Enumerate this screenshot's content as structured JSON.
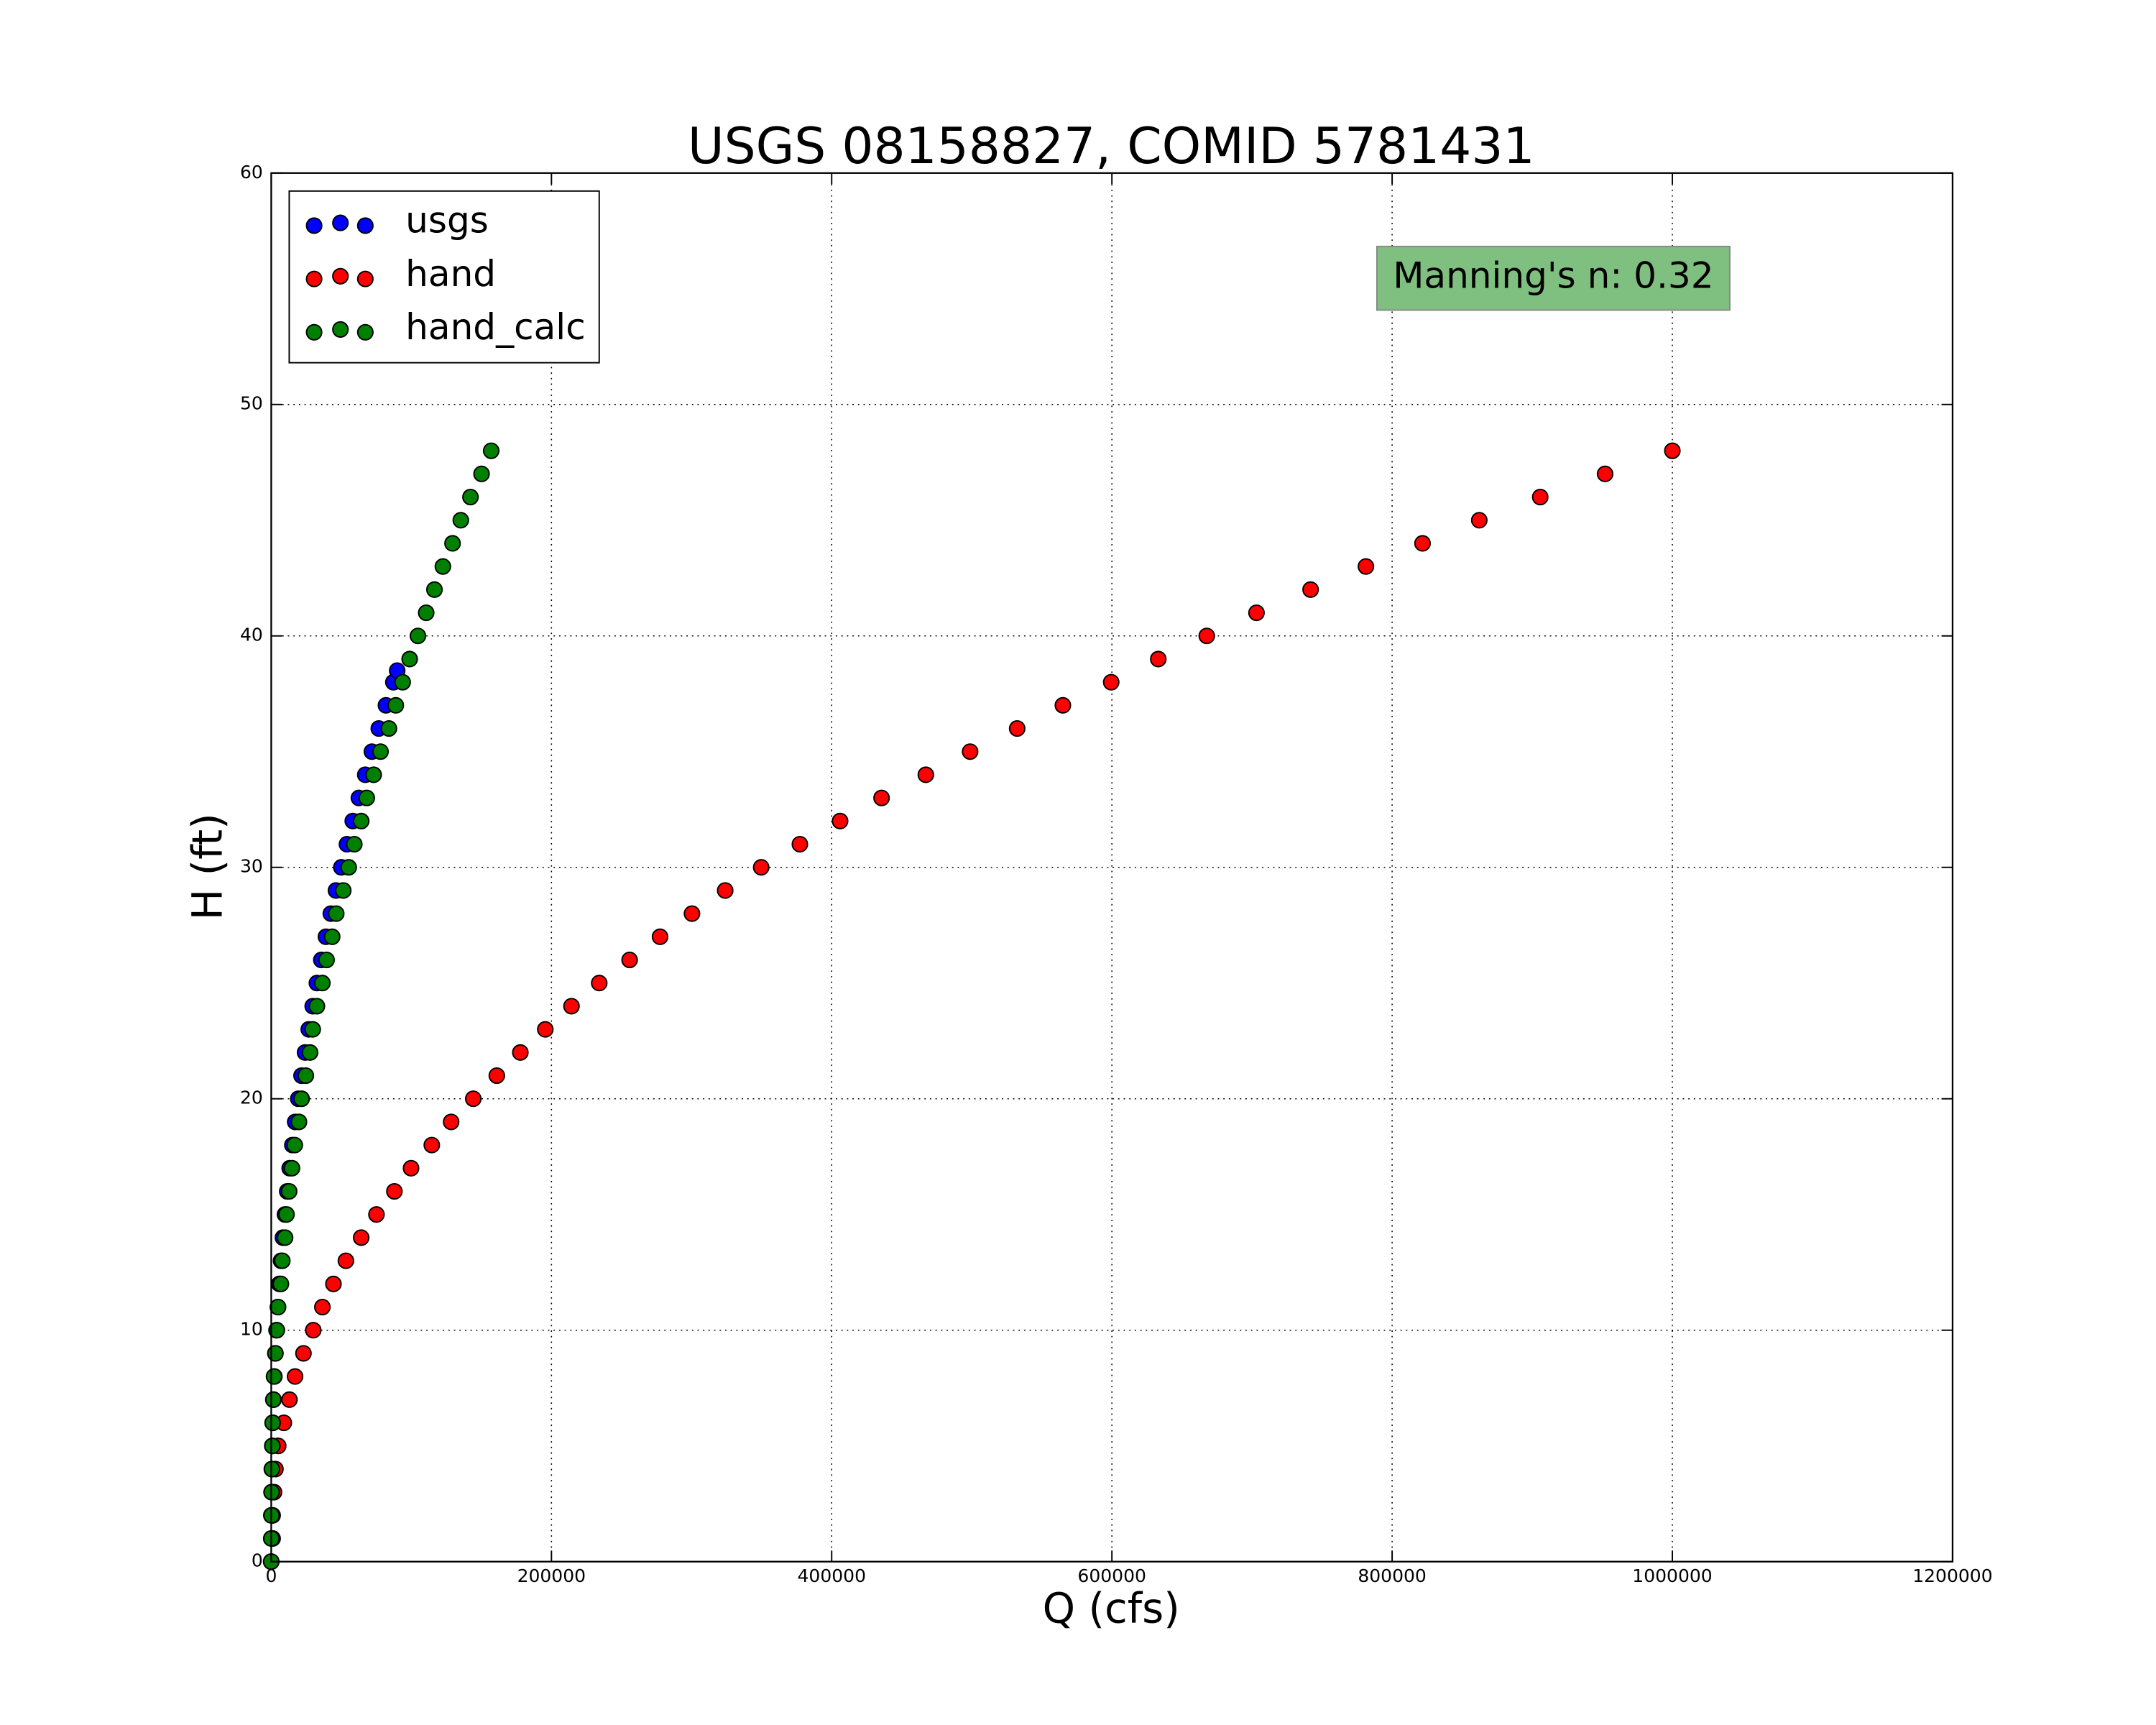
{
  "chart_data": {
    "type": "scatter",
    "title": "USGS 08158827, COMID 5781431",
    "x_label": "Q (cfs)",
    "y_label": "H (ft)",
    "xlim": [
      0,
      1200000
    ],
    "ylim": [
      0,
      60
    ],
    "xticks": [
      0,
      200000,
      400000,
      600000,
      800000,
      1000000,
      1200000
    ],
    "yticks": [
      0,
      10,
      20,
      30,
      40,
      50,
      60
    ],
    "grid": true,
    "legend": "upper left",
    "annotation": {
      "text": "Manning's n: 0.32",
      "color": "#7fbf7f"
    },
    "series": [
      {
        "name": "usgs",
        "color": "#0000ff",
        "x": [
          0,
          17,
          86,
          224,
          440,
          743,
          1139,
          1637,
          2239,
          2953,
          3785,
          4733,
          5805,
          7007,
          8345,
          9817,
          11417,
          13161,
          15058,
          17099,
          19293,
          21621,
          24138,
          26781,
          29604,
          32589,
          35735,
          39044,
          42532,
          46191,
          50020,
          54030,
          58201,
          62570,
          67128,
          71848,
          76766,
          81872,
          87176,
          89900
        ],
        "y": [
          0,
          1,
          2,
          3,
          4,
          5,
          6,
          7,
          8,
          9,
          10,
          11,
          12,
          13,
          14,
          15,
          16,
          17,
          18,
          19,
          20,
          21,
          22,
          23,
          24,
          25,
          26,
          27,
          28,
          29,
          30,
          31,
          32,
          33,
          34,
          35,
          36,
          37,
          38,
          38.5
        ]
      },
      {
        "name": "hand",
        "color": "#ff0000",
        "x": [
          0,
          1000,
          1000,
          2000,
          3000,
          5000,
          9000,
          13000,
          17000,
          23000,
          30000,
          36500,
          44400,
          53300,
          64200,
          75100,
          87900,
          99800,
          114600,
          128400,
          144200,
          161000,
          177800,
          195600,
          214300,
          234100,
          255800,
          277500,
          300300,
          324000,
          349700,
          377300,
          406000,
          435600,
          467200,
          498800,
          532400,
          565000,
          599500,
          633100,
          667700,
          703200,
          741800,
          781300,
          821700,
          862200,
          905700,
          952000,
          1000000
        ],
        "y": [
          0,
          1,
          2,
          3,
          4,
          5,
          6,
          7,
          8,
          9,
          10,
          11,
          12,
          13,
          14,
          15,
          16,
          17,
          18,
          19,
          20,
          21,
          22,
          23,
          24,
          25,
          26,
          27,
          28,
          29,
          30,
          31,
          32,
          33,
          34,
          35,
          36,
          37,
          38,
          39,
          40,
          41,
          42,
          43,
          44,
          45,
          46,
          47,
          48
        ]
      },
      {
        "name": "hand_calc",
        "color": "#008000",
        "x": [
          0,
          100,
          200,
          300,
          500,
          800,
          1000,
          1500,
          2000,
          3000,
          4000,
          4900,
          6900,
          7900,
          9900,
          10900,
          12800,
          14800,
          16800,
          19800,
          21700,
          24700,
          27700,
          29600,
          32600,
          36500,
          39500,
          43500,
          46400,
          51400,
          55300,
          59300,
          64200,
          68200,
          73100,
          78000,
          84000,
          88900,
          93800,
          98800,
          104700,
          110600,
          116500,
          122500,
          129400,
          135300,
          142200,
          150100,
          157000
        ],
        "y": [
          0,
          1,
          2,
          3,
          4,
          5,
          6,
          7,
          8,
          9,
          10,
          11,
          12,
          13,
          14,
          15,
          16,
          17,
          18,
          19,
          20,
          21,
          22,
          23,
          24,
          25,
          26,
          27,
          28,
          29,
          30,
          31,
          32,
          33,
          34,
          35,
          36,
          37,
          38,
          39,
          40,
          41,
          42,
          43,
          44,
          45,
          46,
          47,
          48
        ]
      }
    ]
  }
}
